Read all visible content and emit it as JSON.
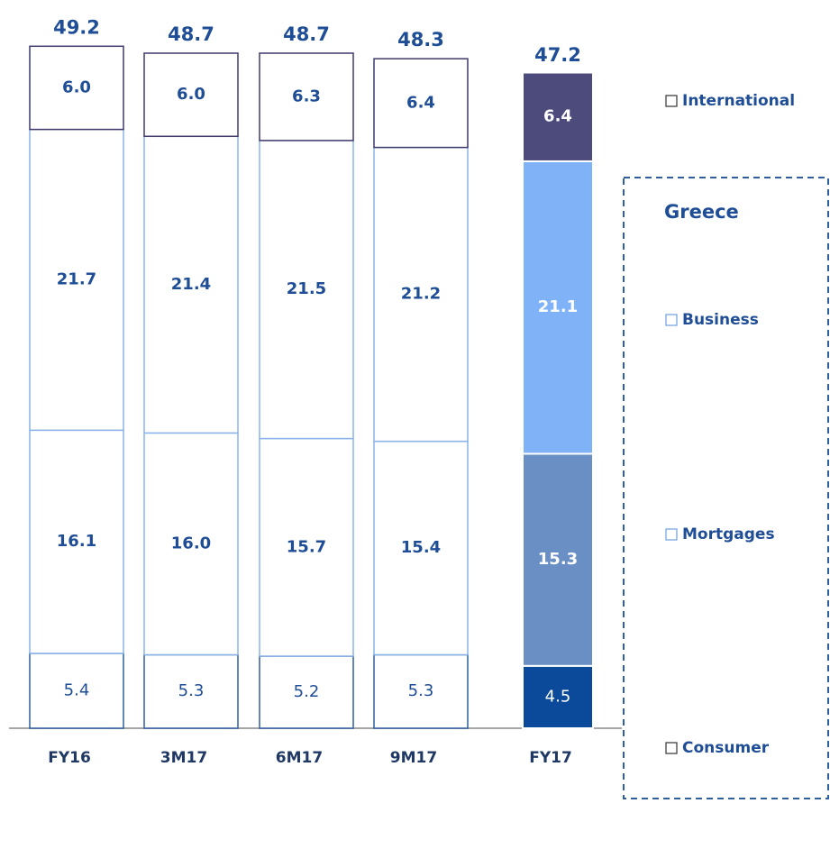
{
  "chart_data": {
    "type": "stacked_bar",
    "categories": [
      "FY16",
      "3M17",
      "6M17",
      "9M17",
      "FY17"
    ],
    "series": [
      {
        "name": "Consumer",
        "color": "#0b4a9a",
        "outline": "#2f5f9e",
        "values": [
          5.4,
          5.3,
          5.2,
          5.3,
          4.5
        ]
      },
      {
        "name": "Mortgages",
        "color": "#6a8fc4",
        "outline": "#8ab4e8",
        "values": [
          16.1,
          16.0,
          15.7,
          15.4,
          15.3
        ],
        "value_labels": [
          "16.1",
          "16.0",
          "15.7",
          "15.4",
          "15.3"
        ]
      },
      {
        "name": "Business",
        "color": "#7fb2f7",
        "outline": "#8ab4e8",
        "values": [
          21.7,
          21.4,
          21.5,
          21.2,
          21.1
        ]
      },
      {
        "name": "International",
        "color": "#4d4a7c",
        "outline": "#3f3a6b",
        "values": [
          6.0,
          6.0,
          6.3,
          6.4,
          6.4
        ],
        "value_labels": [
          "6.0",
          "6.0",
          "6.3",
          "6.4",
          "6.4"
        ]
      }
    ],
    "totals": [
      49.2,
      48.7,
      48.7,
      48.3,
      47.2
    ],
    "group_label": "Greece",
    "highlight_index": 4,
    "ylim": [
      0,
      50
    ]
  }
}
